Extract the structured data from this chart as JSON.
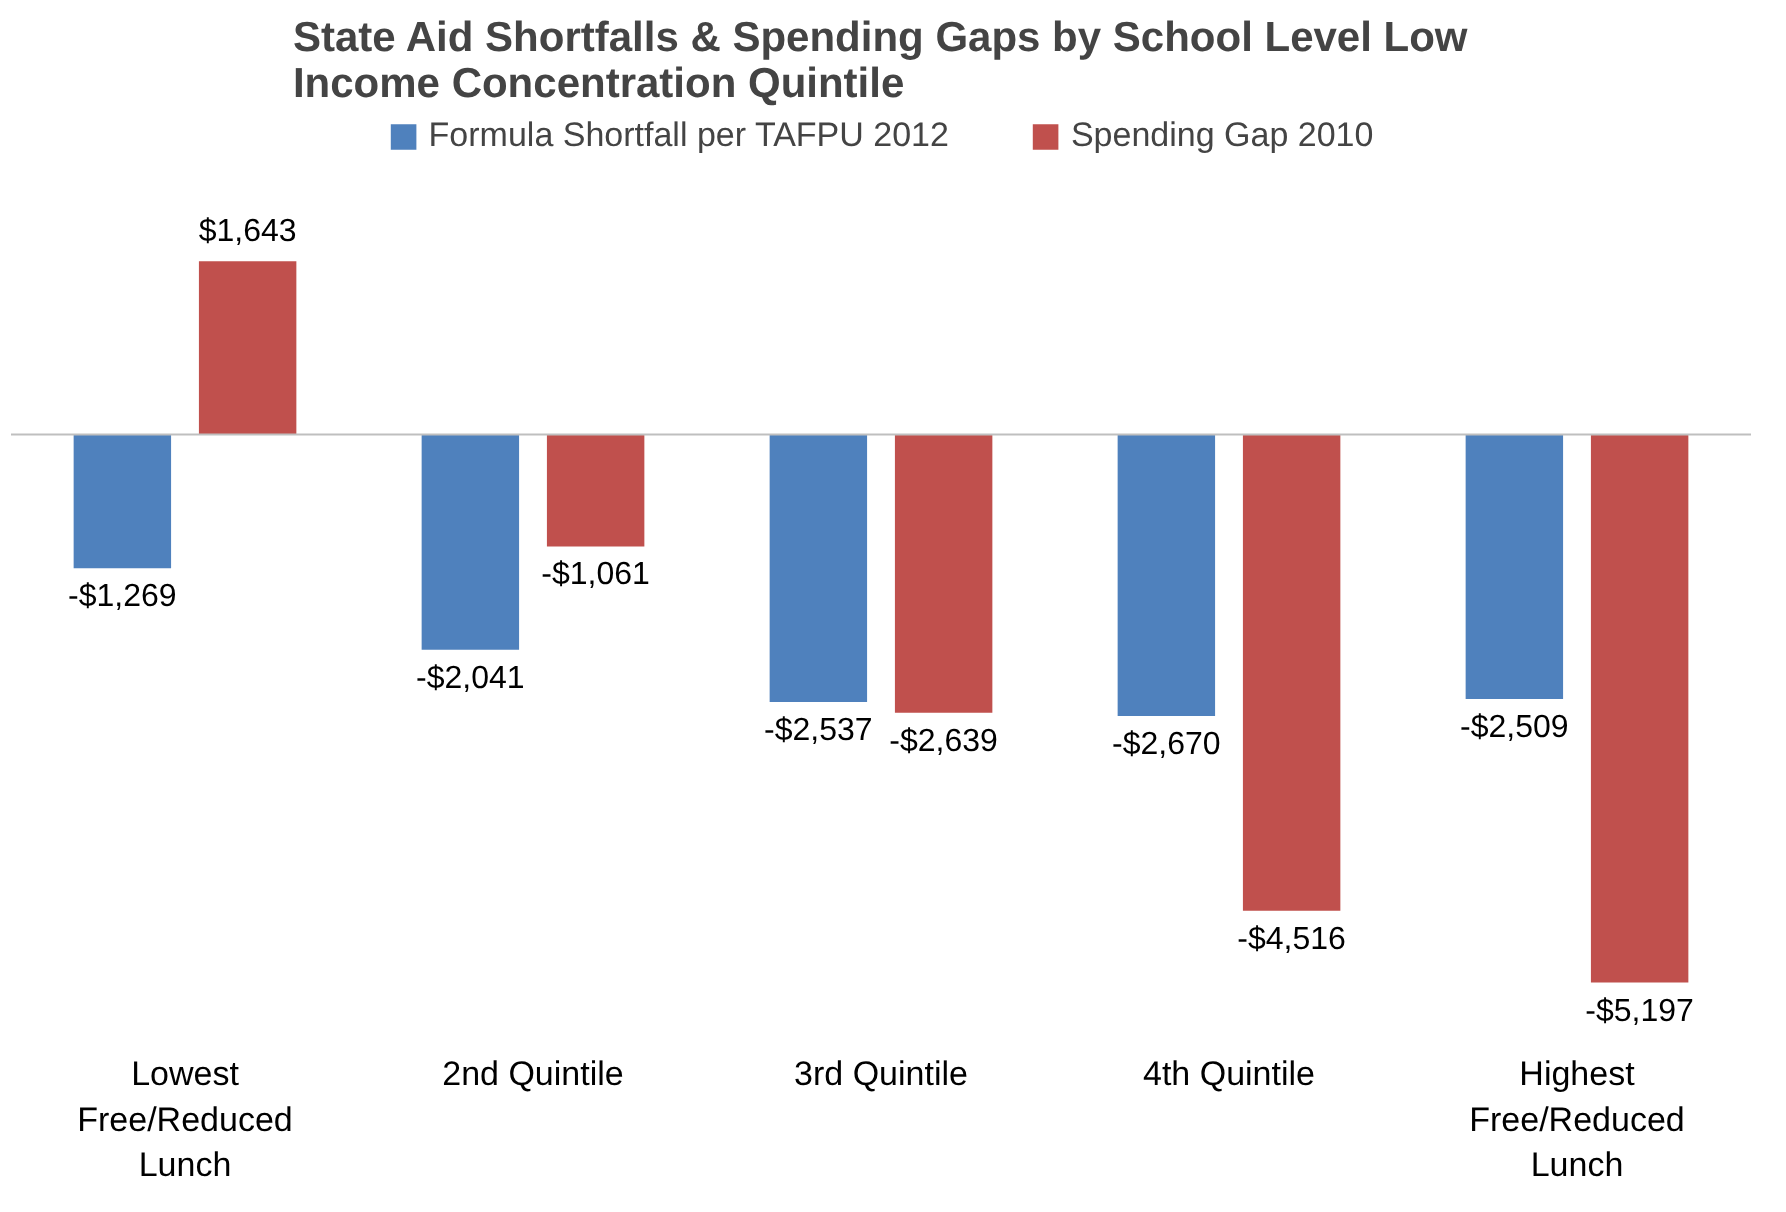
{
  "chart_data": {
    "type": "bar",
    "title": "State Aid Shortfalls & Spending Gaps by School Level Low\nIncome Concentration Quintile",
    "categories": [
      "Lowest\nFree/Reduced\nLunch",
      "2nd Quintile",
      "3rd Quintile",
      "4th Quintile",
      "Highest\nFree/Reduced\nLunch"
    ],
    "series": [
      {
        "name": "Formula Shortfall per TAFPU 2012",
        "color": "#4f81bd",
        "values": [
          -1269,
          -2041,
          -2537,
          -2670,
          -2509
        ],
        "value_labels": [
          "-$1,269",
          "-$2,041",
          "-$2,537",
          "-$2,670",
          "-$2,509"
        ]
      },
      {
        "name": "Spending Gap 2010",
        "color": "#c0504d",
        "values": [
          1643,
          -1061,
          -2639,
          -4516,
          -5197
        ],
        "value_labels": [
          "$1,643",
          "-$1,061",
          "-$2,639",
          "-$4,516",
          "-$5,197"
        ]
      }
    ],
    "legend": "top"
  }
}
